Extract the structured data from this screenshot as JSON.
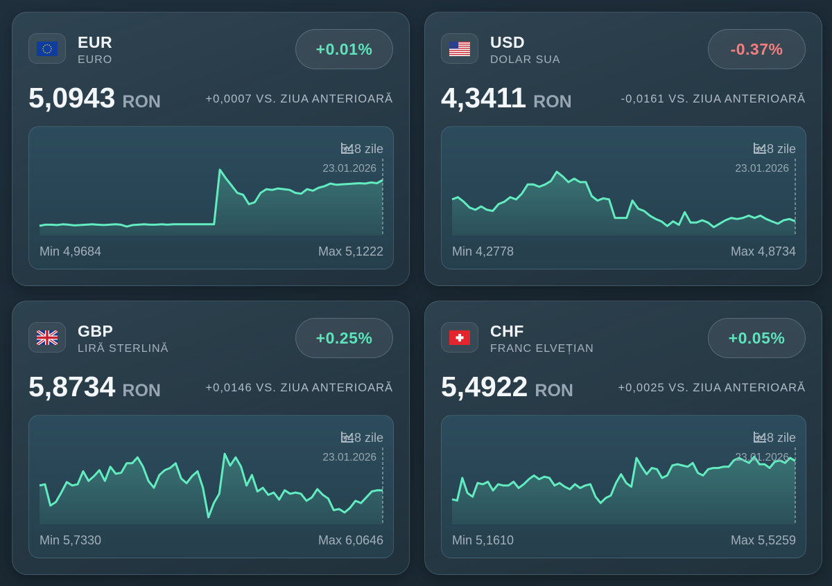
{
  "cards": [
    {
      "code": "EUR",
      "name": "EURO",
      "flag": "eu-flag-icon",
      "change": "+0.01%",
      "trend": "up",
      "rate": "5,0943",
      "unit": "RON",
      "delta": "+0,0007 VS. ZIUA ANTERIOARĂ",
      "period": "548 zile",
      "date": "23.01.2026",
      "min": "Min 4,9684",
      "max": "Max 5,1222"
    },
    {
      "code": "USD",
      "name": "DOLAR SUA",
      "flag": "us-flag-icon",
      "change": "-0.37%",
      "trend": "down",
      "rate": "4,3411",
      "unit": "RON",
      "delta": "-0,0161 VS. ZIUA ANTERIOARĂ",
      "period": "548 zile",
      "date": "23.01.2026",
      "min": "Min 4,2778",
      "max": "Max 4,8734"
    },
    {
      "code": "GBP",
      "name": "LIRĂ STERLINĂ",
      "flag": "uk-flag-icon",
      "change": "+0.25%",
      "trend": "up",
      "rate": "5,8734",
      "unit": "RON",
      "delta": "+0,0146 VS. ZIUA ANTERIOARĂ",
      "period": "548 zile",
      "date": "23.01.2026",
      "min": "Min 5,7330",
      "max": "Max 6,0646"
    },
    {
      "code": "CHF",
      "name": "FRANC ELVEȚIAN",
      "flag": "ch-flag-icon",
      "change": "+0.05%",
      "trend": "up",
      "rate": "5,4922",
      "unit": "RON",
      "delta": "+0,0025 VS. ZIUA ANTERIOARĂ",
      "period": "548 zile",
      "date": "23.01.2026",
      "min": "Min 5,1610",
      "max": "Max 5,5259"
    }
  ],
  "colors": {
    "up": "#5fe3bb",
    "down": "#f47f7f",
    "line": "#62ecc0"
  },
  "chart_data": [
    {
      "type": "area",
      "series": "EUR",
      "ylim": [
        4.946,
        5.15
      ],
      "values": [
        4.972,
        4.975,
        4.975,
        4.974,
        4.976,
        4.975,
        4.973,
        4.974,
        4.975,
        4.976,
        4.975,
        4.974,
        4.975,
        4.976,
        4.975,
        4.97,
        4.974,
        4.975,
        4.976,
        4.975,
        4.975,
        4.976,
        4.975,
        4.976,
        4.976,
        4.976,
        4.976,
        4.976,
        4.976,
        4.976,
        4.976,
        5.1222,
        5.1,
        5.08,
        5.06,
        5.055,
        5.03,
        5.035,
        5.06,
        5.07,
        5.068,
        5.072,
        5.07,
        5.068,
        5.06,
        5.058,
        5.07,
        5.066,
        5.074,
        5.078,
        5.085,
        5.082,
        5.083,
        5.084,
        5.085,
        5.086,
        5.085,
        5.088,
        5.086,
        5.0943
      ]
    },
    {
      "type": "area",
      "series": "USD",
      "ylim": [
        4.188,
        5.007
      ],
      "values": [
        4.576,
        4.6,
        4.551,
        4.489,
        4.464,
        4.501,
        4.464,
        4.452,
        4.526,
        4.551,
        4.6,
        4.576,
        4.638,
        4.737,
        4.737,
        4.712,
        4.737,
        4.774,
        4.8734,
        4.824,
        4.762,
        4.799,
        4.762,
        4.762,
        4.613,
        4.563,
        4.588,
        4.576,
        4.377,
        4.377,
        4.377,
        4.563,
        4.476,
        4.452,
        4.402,
        4.365,
        4.34,
        4.29,
        4.34,
        4.303,
        4.439,
        4.327,
        4.327,
        4.352,
        4.327,
        4.2778,
        4.315,
        4.352,
        4.377,
        4.365,
        4.377,
        4.402,
        4.377,
        4.402,
        4.365,
        4.34,
        4.315,
        4.352,
        4.365,
        4.3411
      ]
    },
    {
      "type": "area",
      "series": "GBP",
      "ylim": [
        5.696,
        6.094
      ],
      "values": [
        5.899,
        5.905,
        5.794,
        5.813,
        5.862,
        5.917,
        5.899,
        5.905,
        5.973,
        5.923,
        5.948,
        5.979,
        5.923,
        5.997,
        5.96,
        5.966,
        6.015,
        6.015,
        6.046,
        5.997,
        5.923,
        5.887,
        5.954,
        5.979,
        5.991,
        6.015,
        5.936,
        5.911,
        5.948,
        5.973,
        5.887,
        5.733,
        5.807,
        5.856,
        6.0646,
        6.003,
        6.046,
        5.997,
        5.899,
        5.954,
        5.868,
        5.887,
        5.85,
        5.862,
        5.825,
        5.874,
        5.856,
        5.862,
        5.856,
        5.819,
        5.837,
        5.88,
        5.85,
        5.831,
        5.77,
        5.776,
        5.758,
        5.782,
        5.819,
        5.807,
        5.837,
        5.868,
        5.874,
        5.8734
      ]
    },
    {
      "type": "area",
      "series": "CHF",
      "ylim": [
        4.993,
        5.593
      ],
      "values": [
        5.1907,
        5.1808,
        5.3583,
        5.24,
        5.2104,
        5.3188,
        5.309,
        5.3287,
        5.2597,
        5.309,
        5.2991,
        5.2991,
        5.3287,
        5.2794,
        5.309,
        5.3484,
        5.378,
        5.3484,
        5.3681,
        5.3583,
        5.2991,
        5.3188,
        5.2893,
        5.2695,
        5.309,
        5.2794,
        5.2991,
        5.309,
        5.2104,
        5.161,
        5.2005,
        5.2202,
        5.3188,
        5.3879,
        5.3188,
        5.2893,
        5.516,
        5.447,
        5.3879,
        5.4372,
        5.4273,
        5.3583,
        5.378,
        5.4569,
        5.4667,
        5.4569,
        5.447,
        5.4766,
        5.3977,
        5.378,
        5.4273,
        5.4372,
        5.4372,
        5.447,
        5.447,
        5.4963,
        5.516,
        5.4963,
        5.4766,
        5.5259,
        5.4667,
        5.4667,
        5.4372,
        5.4865,
        5.4963,
        5.4766,
        5.516,
        5.4922
      ]
    }
  ]
}
